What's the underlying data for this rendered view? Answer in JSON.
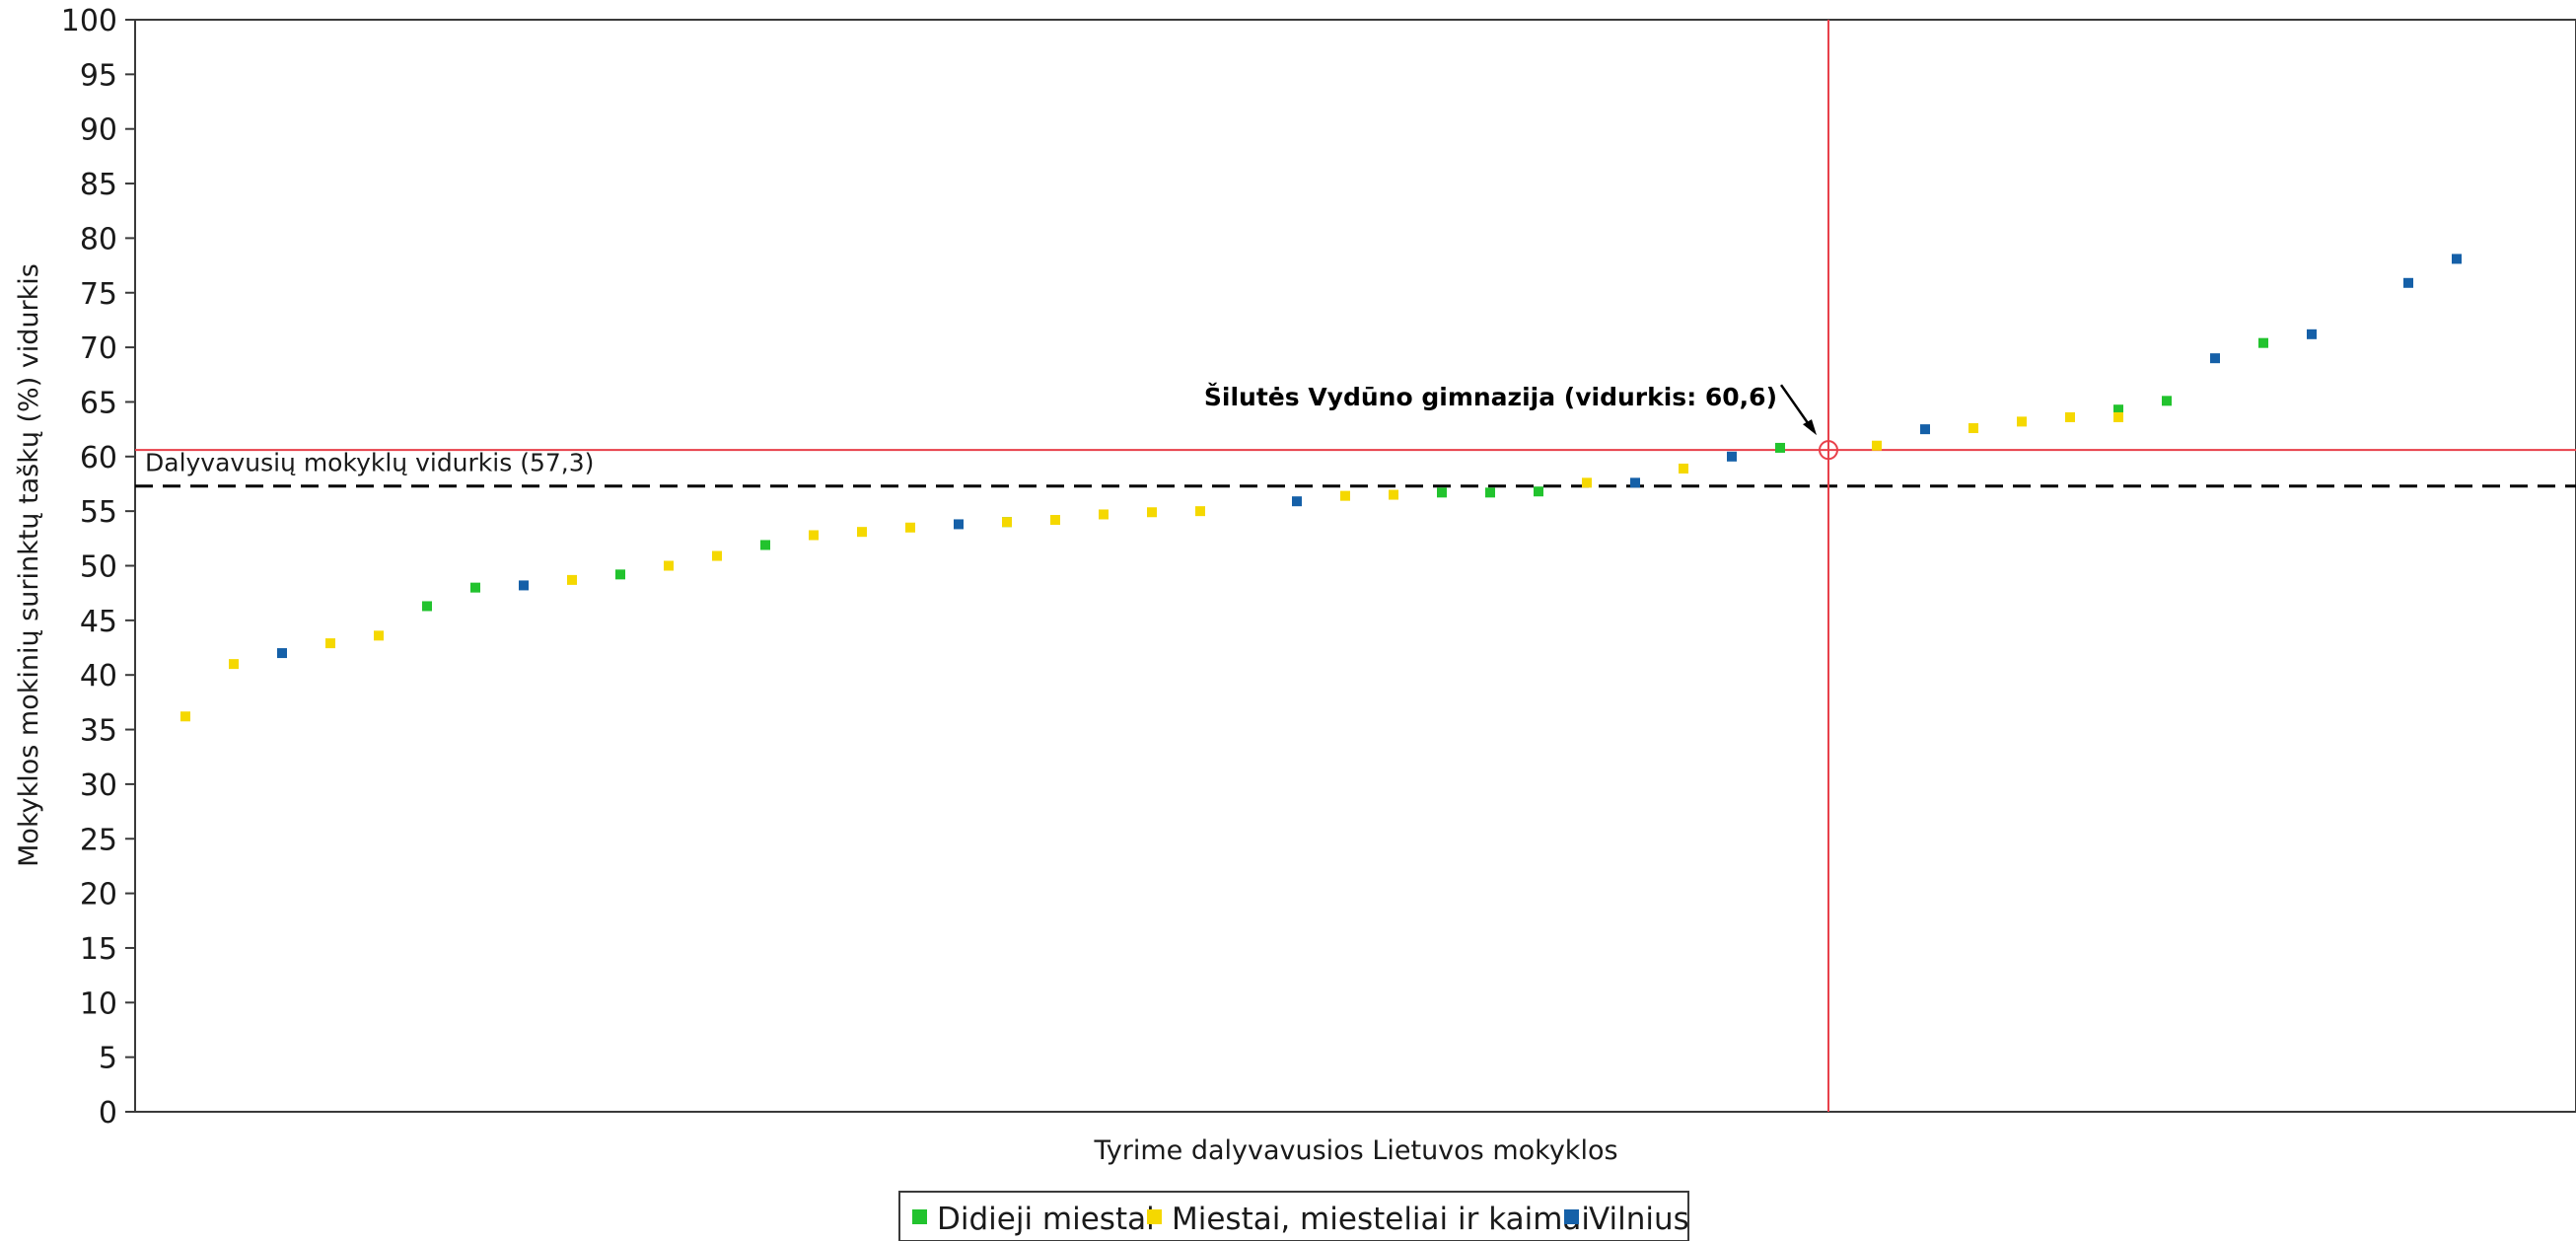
{
  "chart_data": {
    "type": "scatter",
    "ylabel": "Mokyklos mokinių surinktų taškų (%) vidurkis",
    "xlabel": "Tyrime dalyvavusios Lietuvos mokyklos",
    "ylim": [
      0,
      100
    ],
    "yticks": [
      "0",
      "5",
      "10",
      "15",
      "20",
      "25",
      "30",
      "35",
      "40",
      "45",
      "50",
      "55",
      "60",
      "65",
      "70",
      "75",
      "80",
      "85",
      "90",
      "95",
      "100"
    ],
    "grid": false,
    "legend_position": "bottom-center",
    "average": {
      "value": 57.3,
      "label": "Dalyvavusių mokyklų vidurkis (57,3)"
    },
    "highlight": {
      "x": 35,
      "y": 60.6,
      "label": "Šilutės Vydūno gimnazija (vidurkis: 60,6)"
    },
    "colors": {
      "didieji": "#22c32e",
      "miestai": "#f5d800",
      "vilnius": "#1560a8",
      "highlight": "#e8404a"
    },
    "x": [
      1,
      2,
      3,
      4,
      5,
      6,
      7,
      8,
      9,
      10,
      11,
      12,
      13,
      14,
      15,
      16,
      17,
      18,
      19,
      20,
      21,
      22,
      23,
      24,
      25,
      26,
      27,
      28,
      29,
      30,
      31,
      32,
      33,
      34,
      35,
      36,
      37,
      38,
      39,
      40,
      41,
      42,
      43,
      44,
      45,
      46,
      47,
      48,
      49,
      50
    ],
    "series": [
      {
        "name": "Didieji miestai",
        "points": [
          [
            6,
            46.3
          ],
          [
            7,
            48.0
          ],
          [
            10,
            49.2
          ],
          [
            13,
            51.9
          ],
          [
            18,
            54.0
          ],
          [
            27,
            56.7
          ],
          [
            28,
            56.7
          ],
          [
            29,
            56.8
          ],
          [
            34,
            60.8
          ],
          [
            41,
            64.3
          ],
          [
            42,
            65.1
          ],
          [
            44,
            70.4
          ]
        ]
      },
      {
        "name": "Miestai, miesteliai ir kaimai",
        "points": [
          [
            1,
            36.2
          ],
          [
            2,
            41.0
          ],
          [
            4,
            42.9
          ],
          [
            5,
            43.6
          ],
          [
            9,
            48.7
          ],
          [
            11,
            50.0
          ],
          [
            12,
            50.9
          ],
          [
            14,
            52.8
          ],
          [
            15,
            53.1
          ],
          [
            16,
            53.5
          ],
          [
            18,
            54.0
          ],
          [
            19,
            54.2
          ],
          [
            20,
            54.7
          ],
          [
            21,
            54.9
          ],
          [
            22,
            55.0
          ],
          [
            25,
            56.4
          ],
          [
            26,
            56.5
          ],
          [
            30,
            57.6
          ],
          [
            32,
            58.9
          ],
          [
            36,
            61.0
          ],
          [
            38,
            62.6
          ],
          [
            39,
            63.2
          ],
          [
            40,
            63.6
          ],
          [
            41,
            63.6
          ]
        ]
      },
      {
        "name": "Vilnius",
        "points": [
          [
            3,
            42.0
          ],
          [
            8,
            48.2
          ],
          [
            17,
            53.8
          ],
          [
            24,
            55.9
          ],
          [
            31,
            57.6
          ],
          [
            33,
            60.0
          ],
          [
            37,
            62.5
          ],
          [
            43,
            69.0
          ],
          [
            45,
            71.2
          ],
          [
            47,
            75.9
          ],
          [
            48,
            78.1
          ]
        ]
      }
    ]
  }
}
